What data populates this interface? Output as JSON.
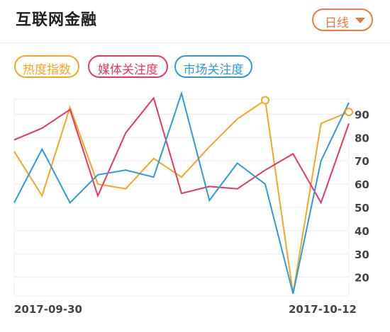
{
  "header": {
    "title": "互联网金融",
    "period_label": "日线"
  },
  "legend": [
    {
      "label": "热度指数",
      "color": "#f5a623"
    },
    {
      "label": "媒体关注度",
      "color": "#e8395c"
    },
    {
      "label": "市场关注度",
      "color": "#2e9bd6"
    }
  ],
  "chart_data": {
    "type": "line",
    "x_labels": [
      "2017-09-30",
      "2017-10-12"
    ],
    "y_ticks": [
      20,
      30,
      40,
      50,
      60,
      70,
      80,
      90
    ],
    "ylim": [
      12,
      96.5
    ],
    "grid": true,
    "series": [
      {
        "name": "热度指数",
        "color": "#f5a623",
        "values": [
          74,
          55,
          93,
          60,
          58,
          71,
          63,
          76,
          88,
          96,
          13,
          86,
          91
        ],
        "highlight": [
          9,
          12
        ]
      },
      {
        "name": "媒体关注度",
        "color": "#e8395c",
        "values": [
          79,
          84,
          92,
          55,
          82,
          97,
          56,
          59,
          58,
          66,
          73,
          52,
          86
        ]
      },
      {
        "name": "市场关注度",
        "color": "#2e9bd6",
        "values": [
          52,
          75,
          52,
          64,
          66,
          63,
          99,
          53,
          69,
          60,
          13,
          70,
          95
        ]
      }
    ]
  }
}
